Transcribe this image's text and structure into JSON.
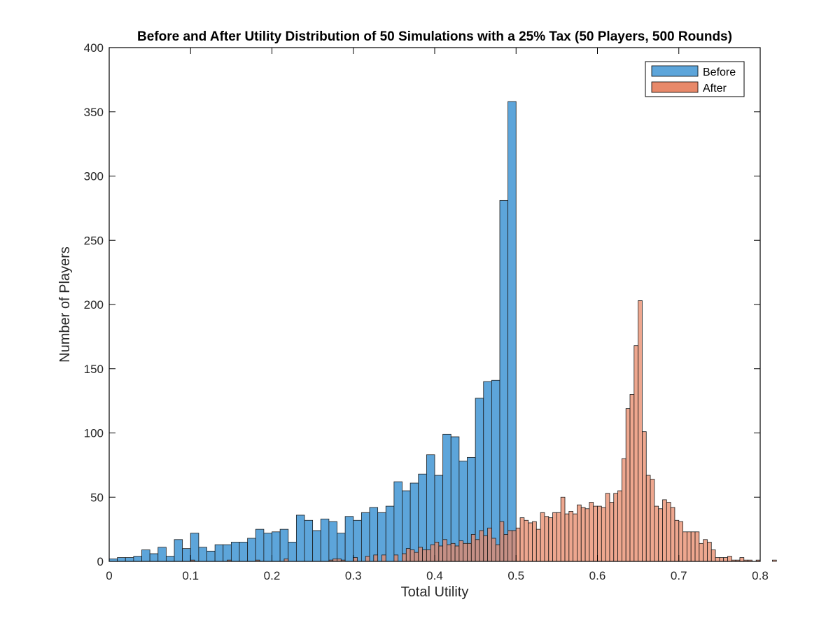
{
  "chart_data": {
    "type": "bar",
    "title": "Before and After Utility Distribution of 50 Simulations with a 25% Tax (50 Players, 500 Rounds)",
    "xlabel": "Total Utility",
    "ylabel": "Number of Players",
    "xlim": [
      0,
      0.8
    ],
    "ylim": [
      0,
      400
    ],
    "xticks": [
      0,
      0.1,
      0.2,
      0.3,
      0.4,
      0.5,
      0.6,
      0.7,
      0.8
    ],
    "xtick_labels": [
      "0",
      "0.1",
      "0.2",
      "0.3",
      "0.4",
      "0.5",
      "0.6",
      "0.7",
      "0.8"
    ],
    "yticks": [
      0,
      50,
      100,
      150,
      200,
      250,
      300,
      350,
      400
    ],
    "ytick_labels": [
      "0",
      "50",
      "100",
      "150",
      "200",
      "250",
      "300",
      "350",
      "400"
    ],
    "grid": false,
    "legend": "top-right",
    "series": [
      {
        "name": "Before",
        "color": "#5DA5DA",
        "bin_start": 0.0,
        "bin_width": 0.01,
        "values": [
          2,
          3,
          3,
          4,
          9,
          6,
          11,
          4,
          17,
          10,
          22,
          11,
          8,
          13,
          13,
          15,
          15,
          18,
          25,
          22,
          23,
          25,
          15,
          36,
          32,
          24,
          33,
          31,
          22,
          35,
          32,
          38,
          42,
          38,
          43,
          62,
          55,
          61,
          68,
          83,
          67,
          99,
          97,
          78,
          81,
          127,
          140,
          141,
          281,
          358
        ]
      },
      {
        "name": "After",
        "color": "#E8896A",
        "bin_start": 0.0,
        "bin_width": 0.005,
        "values": [
          0,
          0,
          0,
          0,
          0,
          0,
          0,
          0,
          0,
          0,
          0,
          0,
          0,
          0,
          0,
          0,
          0,
          0,
          0,
          0,
          1,
          0,
          0,
          0,
          0,
          0,
          0,
          0,
          0,
          1,
          0,
          0,
          0,
          0,
          0,
          0,
          1,
          0,
          0,
          0,
          0,
          0,
          0,
          2,
          0,
          0,
          0,
          0,
          0,
          0,
          0,
          0,
          0,
          0,
          1,
          2,
          2,
          1,
          0,
          0,
          3,
          0,
          0,
          4,
          0,
          5,
          0,
          5,
          0,
          0,
          5,
          0,
          6,
          10,
          9,
          7,
          11,
          9,
          9,
          13,
          15,
          12,
          17,
          13,
          14,
          12,
          16,
          14,
          14,
          21,
          17,
          24,
          20,
          26,
          18,
          13,
          31,
          21,
          24,
          24,
          26,
          34,
          32,
          30,
          31,
          25,
          38,
          35,
          34,
          38,
          38,
          50,
          37,
          39,
          37,
          44,
          42,
          41,
          46,
          43,
          43,
          42,
          53,
          46,
          53,
          55,
          80,
          119,
          130,
          168,
          203,
          101,
          67,
          64,
          43,
          41,
          48,
          46,
          42,
          32,
          31,
          23,
          23,
          23,
          23,
          14,
          17,
          15,
          9,
          3,
          3,
          3,
          4,
          1,
          1,
          3,
          1,
          1,
          0,
          1,
          0,
          0,
          0,
          1,
          0,
          0,
          0,
          0,
          0,
          0
        ]
      }
    ]
  }
}
